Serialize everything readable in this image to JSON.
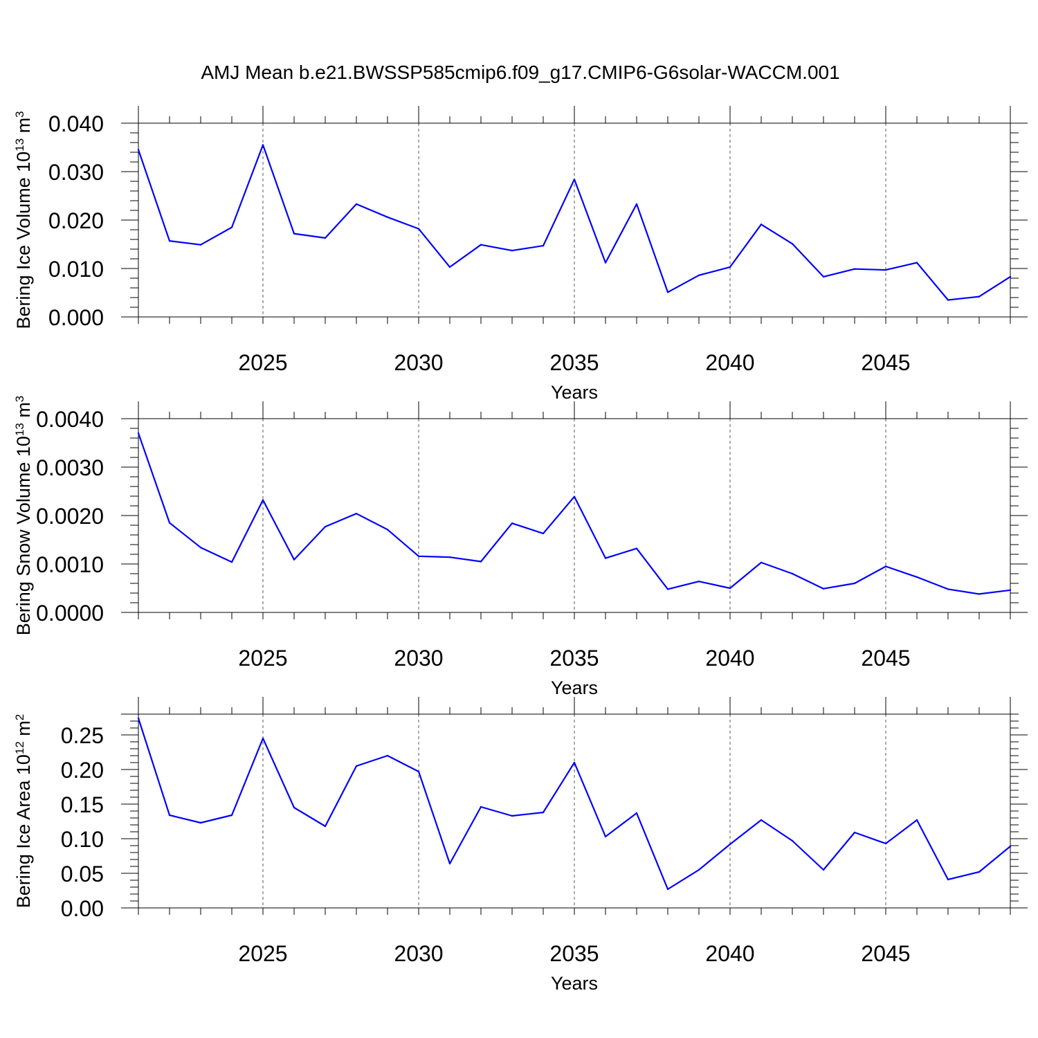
{
  "figure": {
    "title": "AMJ Mean b.e21.BWSSP585cmip6.f09_g17.CMIP6-G6solar-WACCM.001"
  },
  "chart_data": [
    {
      "type": "line",
      "xlabel": "Years",
      "ylabel": {
        "text": "Bering Ice Volume 10",
        "exp": "13",
        "unit": " m",
        "unit_exp": "3"
      },
      "xlim": [
        2021,
        2049
      ],
      "ylim": [
        0,
        0.04
      ],
      "yticks": [
        0,
        0.01,
        0.02,
        0.03,
        0.04
      ],
      "ytick_labels": [
        "0.000",
        "0.010",
        "0.020",
        "0.030",
        "0.040"
      ],
      "xticks": [
        2025,
        2030,
        2035,
        2040,
        2045
      ],
      "xtick_labels": [
        "2025",
        "2030",
        "2035",
        "2040",
        "2045"
      ],
      "grid": "vertical dashed at major x ticks",
      "color": "#0000ff",
      "x": [
        2021,
        2022,
        2023,
        2024,
        2025,
        2026,
        2027,
        2028,
        2029,
        2030,
        2031,
        2032,
        2033,
        2034,
        2035,
        2036,
        2037,
        2038,
        2039,
        2040,
        2041,
        2042,
        2043,
        2044,
        2045,
        2046,
        2047,
        2048,
        2049
      ],
      "values": [
        0.0345,
        0.0157,
        0.0149,
        0.0185,
        0.0355,
        0.0172,
        0.0163,
        0.0233,
        0.0206,
        0.0182,
        0.0103,
        0.0149,
        0.0137,
        0.0147,
        0.0284,
        0.0112,
        0.0233,
        0.0051,
        0.0086,
        0.0103,
        0.0191,
        0.0151,
        0.0083,
        0.0099,
        0.0097,
        0.0112,
        0.0035,
        0.0042,
        0.0083
      ]
    },
    {
      "type": "line",
      "xlabel": "Years",
      "ylabel": {
        "text": "Bering Snow Volume 10",
        "exp": "13",
        "unit": " m",
        "unit_exp": "3"
      },
      "xlim": [
        2021,
        2049
      ],
      "ylim": [
        0,
        0.004
      ],
      "yticks": [
        0,
        0.001,
        0.002,
        0.003,
        0.004
      ],
      "ytick_labels": [
        "0.0000",
        "0.0010",
        "0.0020",
        "0.0030",
        "0.0040"
      ],
      "xticks": [
        2025,
        2030,
        2035,
        2040,
        2045
      ],
      "xtick_labels": [
        "2025",
        "2030",
        "2035",
        "2040",
        "2045"
      ],
      "grid": "vertical dashed at major x ticks",
      "color": "#0000ff",
      "x": [
        2021,
        2022,
        2023,
        2024,
        2025,
        2026,
        2027,
        2028,
        2029,
        2030,
        2031,
        2032,
        2033,
        2034,
        2035,
        2036,
        2037,
        2038,
        2039,
        2040,
        2041,
        2042,
        2043,
        2044,
        2045,
        2046,
        2047,
        2048,
        2049
      ],
      "values": [
        0.0037,
        0.00185,
        0.00134,
        0.00104,
        0.00232,
        0.00109,
        0.00177,
        0.00204,
        0.00171,
        0.00116,
        0.00114,
        0.00105,
        0.00184,
        0.00163,
        0.00239,
        0.00112,
        0.00132,
        0.00048,
        0.00064,
        0.0005,
        0.00103,
        0.0008,
        0.00049,
        0.0006,
        0.00095,
        0.00073,
        0.00048,
        0.00038,
        0.00046
      ]
    },
    {
      "type": "line",
      "xlabel": "Years",
      "ylabel": {
        "text": "Bering Ice Area 10",
        "exp": "12",
        "unit": " m",
        "unit_exp": "2"
      },
      "xlim": [
        2021,
        2049
      ],
      "ylim": [
        0,
        0.28
      ],
      "yticks": [
        0,
        0.05,
        0.1,
        0.15,
        0.2,
        0.25
      ],
      "ytick_labels": [
        "0.00",
        "0.05",
        "0.10",
        "0.15",
        "0.20",
        "0.25"
      ],
      "xticks": [
        2025,
        2030,
        2035,
        2040,
        2045
      ],
      "xtick_labels": [
        "2025",
        "2030",
        "2035",
        "2040",
        "2045"
      ],
      "grid": "vertical dashed at major x ticks",
      "color": "#0000ff",
      "x": [
        2021,
        2022,
        2023,
        2024,
        2025,
        2026,
        2027,
        2028,
        2029,
        2030,
        2031,
        2032,
        2033,
        2034,
        2035,
        2036,
        2037,
        2038,
        2039,
        2040,
        2041,
        2042,
        2043,
        2044,
        2045,
        2046,
        2047,
        2048,
        2049
      ],
      "values": [
        0.274,
        0.134,
        0.123,
        0.134,
        0.245,
        0.145,
        0.118,
        0.205,
        0.22,
        0.197,
        0.064,
        0.146,
        0.133,
        0.138,
        0.21,
        0.103,
        0.137,
        0.027,
        0.055,
        0.092,
        0.127,
        0.097,
        0.055,
        0.109,
        0.093,
        0.127,
        0.041,
        0.052,
        0.089
      ]
    }
  ]
}
